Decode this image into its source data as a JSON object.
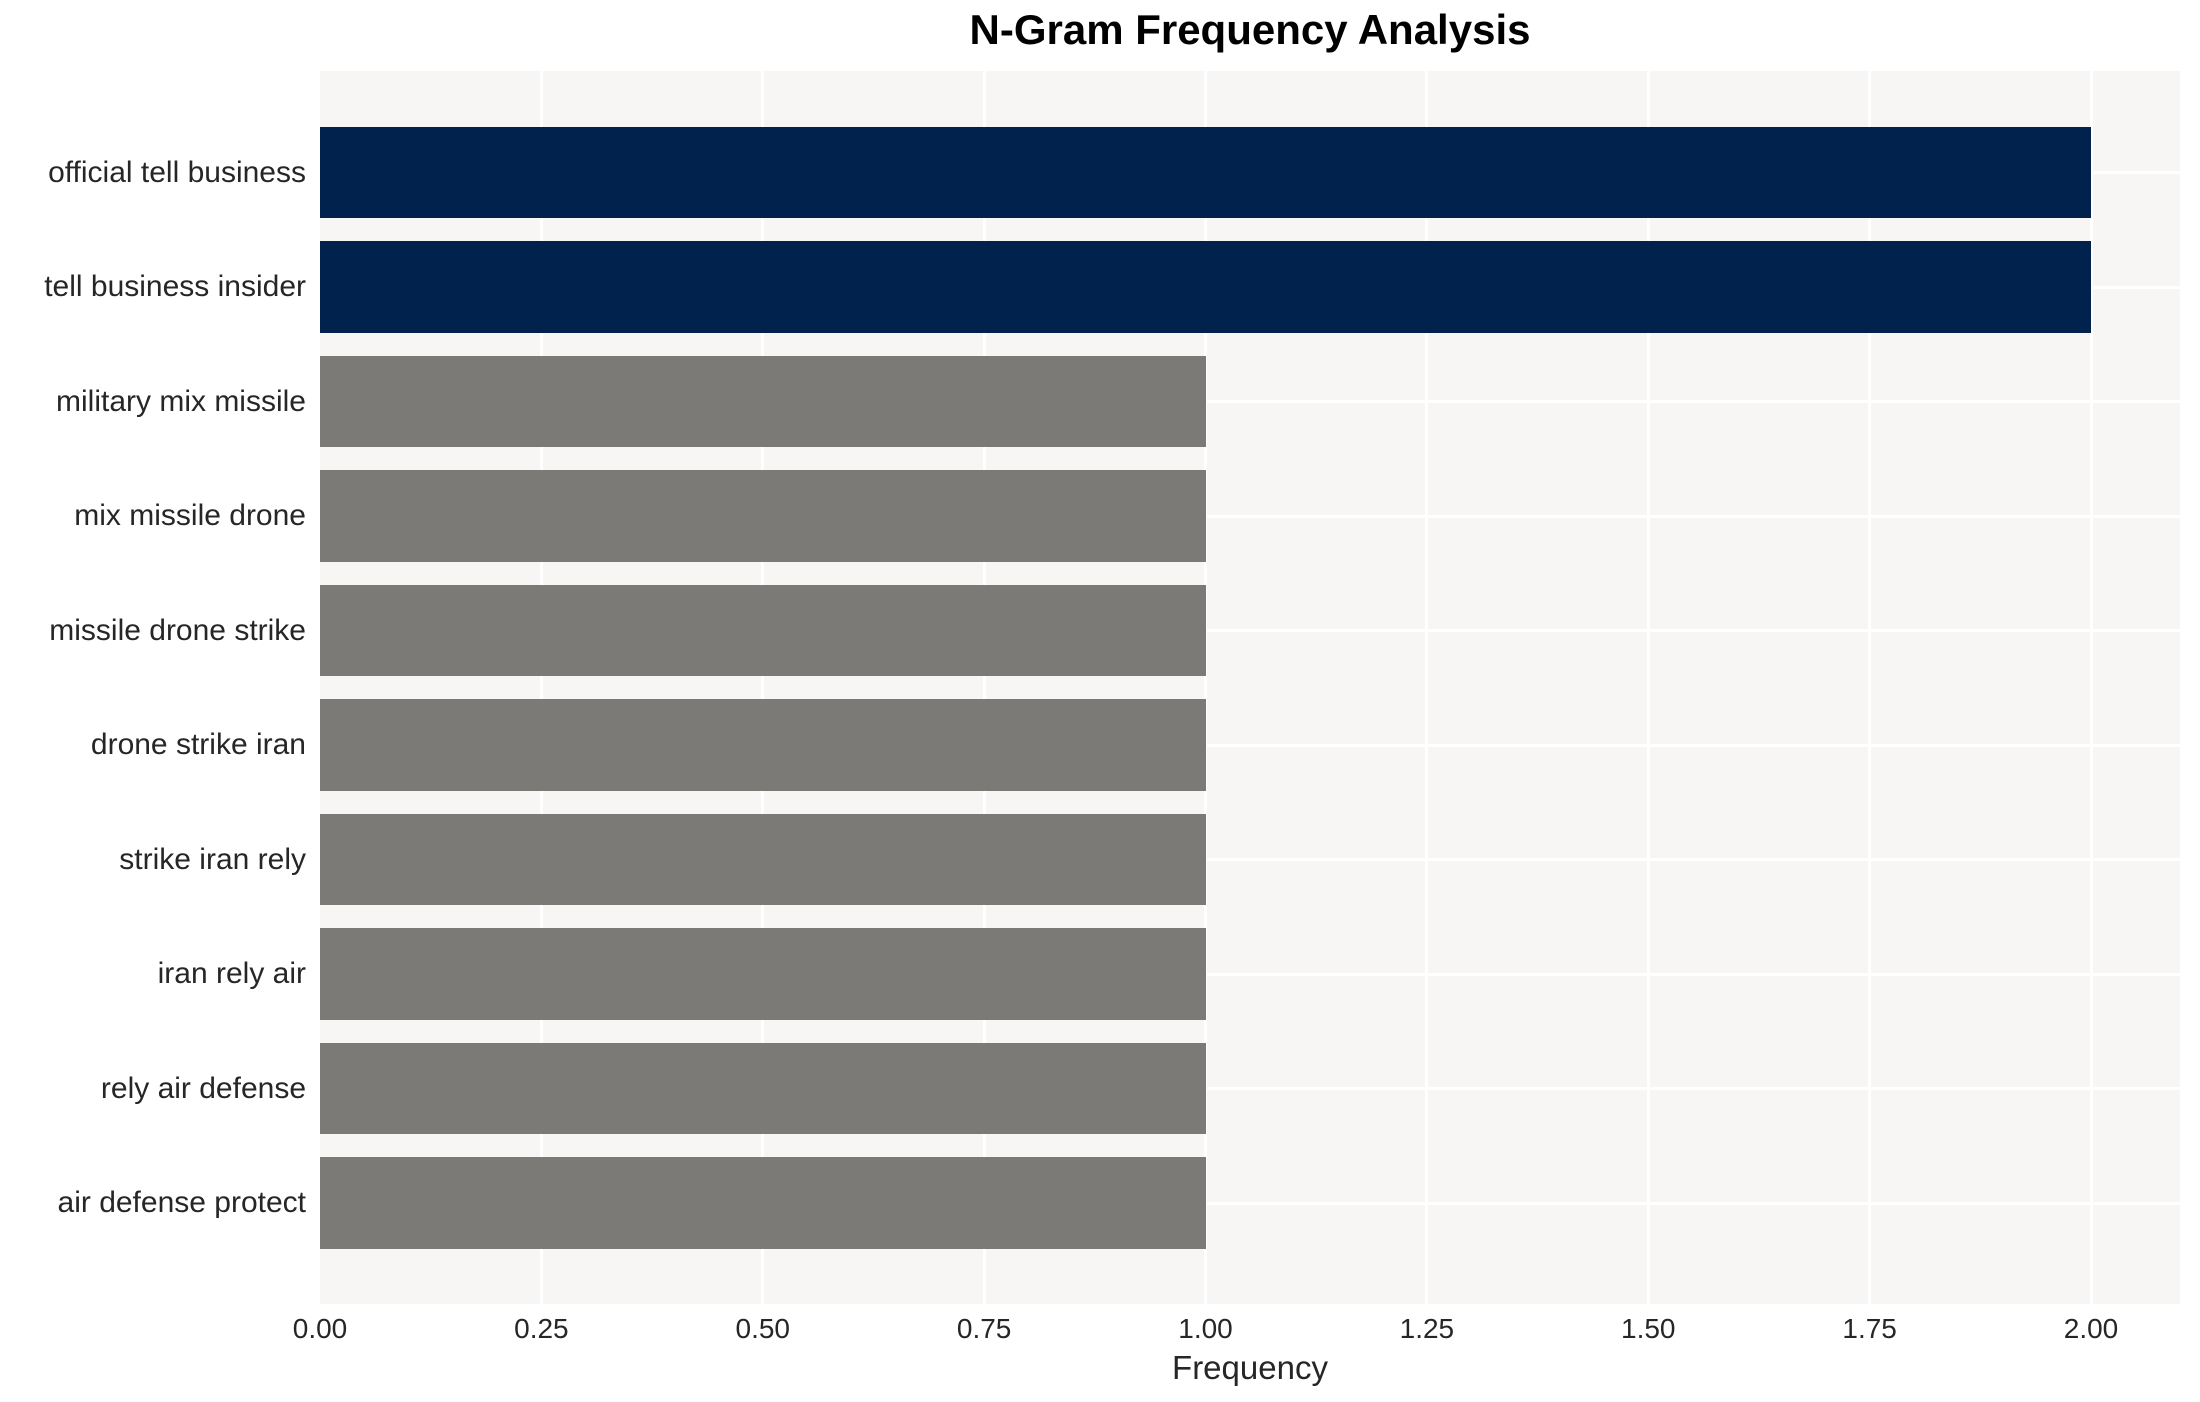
{
  "chart_data": {
    "type": "bar",
    "orientation": "horizontal",
    "title": "N-Gram Frequency Analysis",
    "xlabel": "Frequency",
    "ylabel": "",
    "categories": [
      "official tell business",
      "tell business insider",
      "military mix missile",
      "mix missile drone",
      "missile drone strike",
      "drone strike iran",
      "strike iran rely",
      "iran rely air",
      "rely air defense",
      "air defense protect"
    ],
    "values": [
      2.0,
      2.0,
      1.0,
      1.0,
      1.0,
      1.0,
      1.0,
      1.0,
      1.0,
      1.0
    ],
    "bar_colors": [
      "#02224e",
      "#02224e",
      "#7c7a76",
      "#7c7a76",
      "#7c7a76",
      "#7c7a76",
      "#7c7a76",
      "#7c7a76",
      "#7c7a76",
      "#7c7a76"
    ],
    "xlim": [
      0,
      2.1
    ],
    "xticks": [
      0,
      0.25,
      0.5,
      0.75,
      1.0,
      1.25,
      1.5,
      1.75,
      2.0
    ],
    "xtick_labels": [
      "0.00",
      "0.25",
      "0.50",
      "0.75",
      "1.00",
      "1.25",
      "1.50",
      "1.75",
      "2.00"
    ],
    "grid": true,
    "legend": false,
    "colors": {
      "highlight_bar": "#02224e",
      "default_bar": "#7c7a76",
      "panel_background": "#f7f6f5",
      "gridline": "#ffffff",
      "tick_text": "#262626",
      "title_text": "#000000"
    }
  }
}
